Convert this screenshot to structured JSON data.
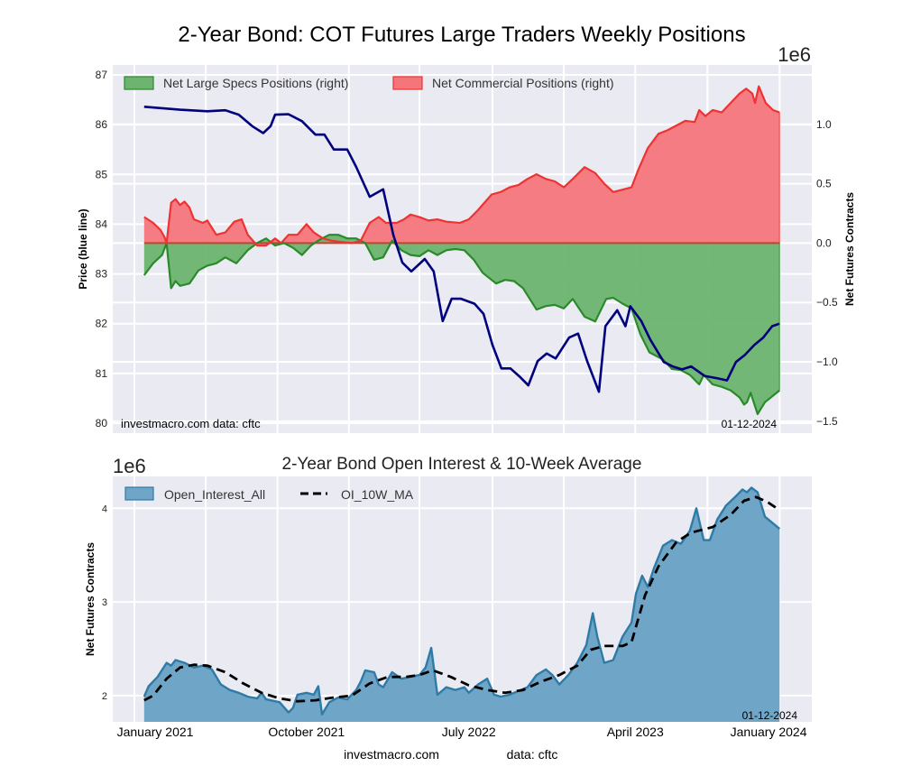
{
  "chart_data": [
    {
      "type": "area",
      "title": "2-Year Bond: COT Futures Large Traders Weekly Positions",
      "x_unit": "weeks since 2020-12-29",
      "xlim": [
        -7.7,
        163.7
      ],
      "x_gridlines": [
        -2.4,
        15.1,
        32.7,
        50.2,
        67.5,
        85.4,
        102.9,
        120.4,
        138.1,
        155.8
      ],
      "left_axis": {
        "label": "Price (blue line)",
        "ylim": [
          79.8,
          87.2
        ],
        "ticks": [
          80,
          81,
          82,
          83,
          84,
          85,
          86,
          87
        ]
      },
      "right_axis": {
        "label": "Net Futures Contracts",
        "scale_label": "1e6",
        "ylim": [
          -1.6,
          1.5
        ],
        "ticks": [
          -1.5,
          -1.0,
          -0.5,
          0.0,
          0.5,
          1.0
        ],
        "tick_labels": [
          "−1.5",
          "−1.0",
          "−0.5",
          "0.0",
          "0.5",
          "1.0"
        ]
      },
      "legend": {
        "position": "top-left",
        "entries": [
          "Net Large Specs Positions (right)",
          "Net Commercial Positions (right)"
        ]
      },
      "annotations": {
        "source": "investmacro.com    data: cftc",
        "date": "01-12-2024"
      },
      "series": [
        {
          "name": "Net Commercial Positions (right)",
          "axis": "right",
          "kind": "fill",
          "color": "#ee3333",
          "fill": "#f4767b",
          "x": [
            0,
            2.2,
            4,
            5,
            5.5,
            6.6,
            7.7,
            8.8,
            9.9,
            11.1,
            12.2,
            14.4,
            15.5,
            17.7,
            19.9,
            22.1,
            23.9,
            25.4,
            27.7,
            29.9,
            32.1,
            33.6,
            35.4,
            37.6,
            39.8,
            41.6,
            43.8,
            46,
            48.2,
            50.9,
            53.1,
            55.3,
            57.5,
            59.3,
            61.9,
            63.7,
            65.3,
            67.5,
            69.7,
            71.9,
            74.1,
            77.4,
            79.6,
            81.9,
            85.2,
            87.4,
            89.6,
            91.8,
            94,
            96.2,
            98.5,
            100.7,
            102.9,
            105.1,
            108,
            110.6,
            112.8,
            115,
            117.3,
            119.5,
            121.2,
            123.5,
            126.1,
            128.3,
            130.5,
            132.7,
            135,
            136.1,
            137.6,
            139.4,
            141.6,
            143.8,
            146,
            147.6,
            149.1,
            149.8,
            150.7,
            152.4,
            154.2,
            155.8
          ],
          "y": [
            0.22,
            0.17,
            0.11,
            0.05,
            0.0,
            0.34,
            0.37,
            0.32,
            0.35,
            0.3,
            0.2,
            0.17,
            0.19,
            0.07,
            0.09,
            0.18,
            0.2,
            0.07,
            -0.02,
            -0.02,
            0.04,
            0.0,
            0.07,
            0.07,
            0.16,
            0.09,
            0.04,
            0.02,
            0.01,
            0.0,
            0.02,
            0.17,
            0.22,
            0.17,
            0.17,
            0.2,
            0.24,
            0.22,
            0.19,
            0.2,
            0.18,
            0.17,
            0.2,
            0.28,
            0.41,
            0.43,
            0.47,
            0.49,
            0.54,
            0.58,
            0.54,
            0.52,
            0.47,
            0.54,
            0.64,
            0.59,
            0.5,
            0.43,
            0.45,
            0.47,
            0.62,
            0.8,
            0.92,
            0.95,
            0.99,
            1.03,
            1.02,
            1.12,
            1.07,
            1.12,
            1.1,
            1.18,
            1.26,
            1.3,
            1.26,
            1.18,
            1.32,
            1.18,
            1.12,
            1.1
          ]
        },
        {
          "name": "Net Large Specs Positions (right)",
          "axis": "right",
          "kind": "fill",
          "color": "#2a8a2a",
          "fill": "#6cb46f",
          "x": [
            0,
            2.2,
            4.4,
            5.5,
            6.6,
            7.7,
            8.8,
            11.1,
            13.3,
            15.5,
            17.7,
            19.9,
            22.6,
            25.4,
            27.7,
            29.9,
            32.1,
            34.3,
            36.5,
            38.7,
            40.9,
            43.1,
            45.4,
            47.6,
            49.8,
            52,
            54.2,
            56.4,
            58.6,
            60.8,
            63.1,
            65.3,
            67.5,
            69.7,
            71.9,
            74.1,
            76.3,
            78.5,
            80.8,
            83,
            86.3,
            88.5,
            90.7,
            92.9,
            96.2,
            98.5,
            100.7,
            102.9,
            105.1,
            108,
            110.6,
            113.3,
            115,
            117.3,
            119.5,
            121.7,
            123.9,
            127.2,
            129.4,
            131.6,
            133.8,
            136.1,
            137.2,
            139.4,
            141.6,
            143.8,
            146,
            147.1,
            147.8,
            148.7,
            150.4,
            152.2,
            155.8
          ],
          "y": [
            -0.27,
            -0.17,
            -0.1,
            0.0,
            -0.38,
            -0.32,
            -0.36,
            -0.34,
            -0.23,
            -0.19,
            -0.17,
            -0.12,
            -0.17,
            -0.06,
            0.0,
            0.04,
            -0.02,
            0.0,
            -0.04,
            -0.1,
            -0.02,
            0.03,
            0.07,
            0.07,
            0.04,
            0.04,
            0.0,
            -0.14,
            -0.12,
            0.02,
            -0.06,
            -0.1,
            -0.11,
            -0.06,
            -0.1,
            -0.06,
            -0.05,
            -0.06,
            -0.14,
            -0.25,
            -0.34,
            -0.31,
            -0.32,
            -0.38,
            -0.56,
            -0.53,
            -0.52,
            -0.55,
            -0.47,
            -0.62,
            -0.66,
            -0.47,
            -0.46,
            -0.51,
            -0.55,
            -0.77,
            -0.92,
            -0.98,
            -1.06,
            -1.07,
            -1.11,
            -1.19,
            -1.11,
            -1.19,
            -1.21,
            -1.24,
            -1.3,
            -1.36,
            -1.34,
            -1.26,
            -1.44,
            -1.34,
            -1.24
          ]
        },
        {
          "name": "Price (blue line)",
          "axis": "left",
          "kind": "line",
          "color": "#00007f",
          "x": [
            0,
            8.8,
            15.5,
            19.9,
            23.2,
            26.5,
            29.2,
            31,
            32.1,
            35.4,
            38.7,
            42,
            44.2,
            46.5,
            49.8,
            52,
            55.3,
            58.6,
            61.1,
            63.3,
            65.5,
            68.8,
            71,
            73.2,
            75.4,
            77.7,
            81,
            83.2,
            85.4,
            87.6,
            89.8,
            92,
            94.2,
            96.5,
            98.7,
            100.9,
            104.2,
            106.4,
            108.6,
            111.5,
            113.1,
            116,
            118,
            119.2,
            121.9,
            124.1,
            127.4,
            129.6,
            131.9,
            134.1,
            137.4,
            140.7,
            142.9,
            145.1,
            147.3,
            149.6,
            151.8,
            154,
            155.8
          ],
          "y": [
            86.36,
            86.3,
            86.27,
            86.29,
            86.2,
            85.97,
            85.83,
            85.97,
            86.2,
            86.21,
            86.07,
            85.8,
            85.8,
            85.5,
            85.5,
            85.15,
            84.55,
            84.7,
            83.78,
            83.23,
            83.05,
            83.3,
            83.05,
            82.05,
            82.5,
            82.5,
            82.4,
            82.2,
            81.57,
            81.1,
            81.1,
            80.94,
            80.76,
            81.25,
            81.4,
            81.3,
            81.72,
            81.8,
            81.25,
            80.63,
            81.95,
            82.27,
            81.95,
            82.35,
            82.05,
            81.68,
            81.23,
            81.14,
            81.08,
            81.14,
            80.95,
            80.9,
            80.86,
            81.23,
            81.37,
            81.57,
            81.72,
            81.95,
            82.0
          ]
        }
      ]
    },
    {
      "type": "area",
      "title": "2-Year Bond Open Interest & 10-Week Average",
      "x_unit": "weeks since 2020-12-29",
      "xlim": [
        -7.7,
        163.7
      ],
      "x_gridlines": [
        -2.4,
        15.1,
        32.7,
        50.2,
        67.5,
        85.4,
        102.9,
        120.4,
        138.1,
        155.8
      ],
      "x_tick_labels": [
        {
          "label": "January 2021",
          "x": 2.7
        },
        {
          "label": "October 2021",
          "x": 39.8
        },
        {
          "label": "July 2022",
          "x": 79.6
        },
        {
          "label": "April 2023",
          "x": 120.4
        },
        {
          "label": "January 2024",
          "x": 153.1
        }
      ],
      "ylabel": "Net Futures Contracts",
      "scale_label": "1e6",
      "ylim": [
        1.72,
        4.34
      ],
      "yticks": [
        2,
        3,
        4
      ],
      "legend": {
        "position": "top-left",
        "entries": [
          "Open_Interest_All",
          "OI_10W_MA"
        ]
      },
      "annotations": {
        "date": "01-12-2024",
        "footer_left": "investmacro.com",
        "footer_right": "data: cftc"
      },
      "series": [
        {
          "name": "Open_Interest_All",
          "kind": "fill",
          "color": "#2f7ba8",
          "fill": "#6fa5c6",
          "x": [
            0,
            1.1,
            3.3,
            5.5,
            6.6,
            7.7,
            9.9,
            12.2,
            14.4,
            16.6,
            18.8,
            21,
            23.2,
            25.4,
            27.7,
            28.8,
            29.9,
            33.2,
            35.4,
            36.5,
            37.6,
            39.8,
            41.6,
            42.7,
            43.6,
            45.4,
            47.6,
            49.8,
            52,
            53.1,
            54.2,
            56.4,
            57.5,
            58.6,
            60.8,
            63.1,
            65.3,
            67.5,
            69,
            70.4,
            71.9,
            74.1,
            76.3,
            78.5,
            79.6,
            81.9,
            84.1,
            85.8,
            87.4,
            89.6,
            91.8,
            94,
            96.2,
            98.5,
            100.1,
            101.8,
            104,
            106.2,
            108.4,
            110,
            111.1,
            112.8,
            115,
            117.3,
            119.5,
            120.6,
            122.1,
            123.5,
            125,
            127.2,
            129.4,
            131.6,
            133.8,
            135.4,
            137.2,
            138.7,
            140.5,
            142.7,
            144.9,
            146.7,
            147.8,
            148.9,
            150.4,
            152.2,
            155.8
          ],
          "y": [
            1.99,
            2.1,
            2.2,
            2.35,
            2.32,
            2.38,
            2.35,
            2.3,
            2.32,
            2.28,
            2.12,
            2.06,
            2.03,
            1.99,
            1.97,
            2.03,
            1.96,
            1.93,
            1.82,
            1.87,
            2.01,
            2.03,
            2.01,
            2.1,
            1.8,
            1.93,
            1.98,
            1.96,
            2.06,
            2.15,
            2.27,
            2.25,
            2.12,
            2.09,
            2.25,
            2.18,
            2.2,
            2.22,
            2.3,
            2.51,
            2.01,
            2.09,
            2.06,
            2.09,
            2.03,
            2.12,
            2.18,
            2.01,
            1.99,
            2.01,
            2.05,
            2.09,
            2.22,
            2.28,
            2.22,
            2.12,
            2.22,
            2.35,
            2.54,
            2.88,
            2.63,
            2.35,
            2.38,
            2.63,
            2.78,
            3.09,
            3.28,
            3.16,
            3.36,
            3.6,
            3.66,
            3.62,
            3.76,
            4.0,
            3.66,
            3.66,
            3.88,
            4.03,
            4.12,
            4.2,
            4.17,
            4.22,
            4.17,
            3.91,
            3.78
          ]
        },
        {
          "name": "OI_10W_MA",
          "kind": "dashed-line",
          "color": "#000000",
          "x": [
            0,
            2.2,
            5.5,
            8.8,
            12.2,
            15.5,
            19.9,
            24.3,
            28.8,
            33.2,
            37.6,
            42,
            46.5,
            50.9,
            55.3,
            59.7,
            64.2,
            67.5,
            70.8,
            75.2,
            79.6,
            84.1,
            88.5,
            92.9,
            97.3,
            101.8,
            106.2,
            109.5,
            112.8,
            117.3,
            119.5,
            122.8,
            126.1,
            130.5,
            134.1,
            139.4,
            143.8,
            147.1,
            150,
            152.7,
            155.8
          ],
          "y": [
            1.95,
            2.0,
            2.18,
            2.3,
            2.33,
            2.32,
            2.25,
            2.13,
            2.03,
            1.97,
            1.94,
            1.95,
            1.98,
            2.0,
            2.13,
            2.2,
            2.2,
            2.22,
            2.27,
            2.2,
            2.11,
            2.06,
            2.03,
            2.06,
            2.15,
            2.22,
            2.32,
            2.49,
            2.53,
            2.53,
            2.57,
            3.07,
            3.38,
            3.64,
            3.74,
            3.8,
            3.93,
            4.08,
            4.12,
            4.07,
            3.98
          ]
        }
      ]
    }
  ]
}
